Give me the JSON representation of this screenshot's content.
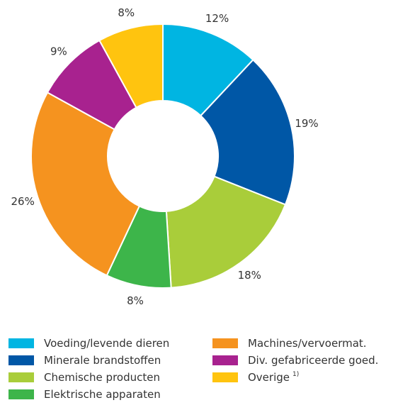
{
  "chart_data": {
    "type": "donut",
    "categories": [
      "Voeding/levende dieren",
      "Minerale brandstoffen",
      "Chemische producten",
      "Elektrische apparaten",
      "Machines/vervoermat.",
      "Div. gefabriceerde goed.",
      "Overige"
    ],
    "category_notes": [
      null,
      null,
      null,
      null,
      null,
      null,
      "1)"
    ],
    "values": [
      12,
      19,
      18,
      8,
      26,
      9,
      8
    ],
    "value_labels": [
      "12%",
      "19%",
      "18%",
      "8%",
      "26%",
      "9%",
      "8%"
    ],
    "colors": [
      "#00b5e2",
      "#0057a6",
      "#a9cd3a",
      "#3db54a",
      "#f5931f",
      "#a8228f",
      "#ffc40f"
    ]
  }
}
